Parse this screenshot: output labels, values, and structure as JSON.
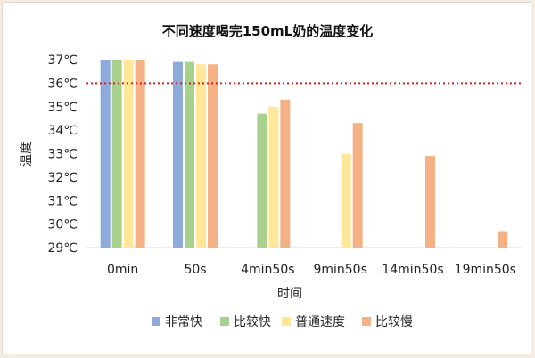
{
  "chart_data": {
    "type": "bar",
    "title": "不同速度喝完150mL奶的温度变化",
    "xlabel": "时间",
    "ylabel": "温度",
    "categories": [
      "0min",
      "50s",
      "4min50s",
      "9min50s",
      "14min50s",
      "19min50s"
    ],
    "y_ticks": [
      "29℃",
      "30℃",
      "31℃",
      "32℃",
      "33℃",
      "34℃",
      "35℃",
      "36℃",
      "37℃"
    ],
    "ylim": [
      29,
      37
    ],
    "grid": false,
    "reference_line": {
      "y": 36,
      "style": "dotted",
      "color": "#e02020"
    },
    "legend_position": "bottom",
    "series": [
      {
        "name": "非常快",
        "color": "#8eaadb",
        "values": [
          37,
          36.9,
          null,
          null,
          null,
          null
        ]
      },
      {
        "name": "比较快",
        "color": "#a9d18e",
        "values": [
          37,
          36.9,
          34.7,
          null,
          null,
          null
        ]
      },
      {
        "name": "普通速度",
        "color": "#ffe699",
        "values": [
          37,
          36.8,
          35.0,
          33.0,
          null,
          null
        ]
      },
      {
        "name": "比较慢",
        "color": "#f4b183",
        "values": [
          37,
          36.8,
          35.3,
          34.3,
          32.9,
          29.7
        ]
      }
    ]
  }
}
